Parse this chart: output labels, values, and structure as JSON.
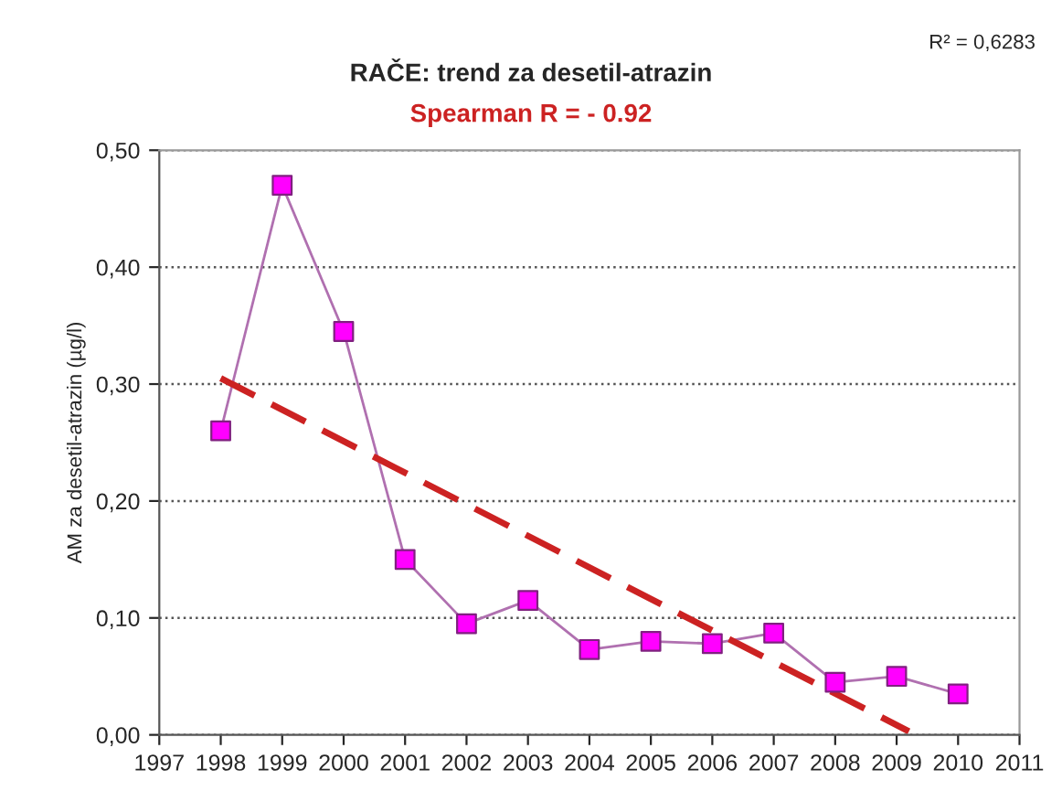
{
  "chart_data": {
    "type": "line",
    "title": "RAČE: trend za desetil-atrazin",
    "subtitle": "Spearman R = - 0.92",
    "ylabel": "AM za desetil-atrazin (µg/l)",
    "annotations": [
      "R² = 0,6283"
    ],
    "x": [
      1998,
      1999,
      2000,
      2001,
      2002,
      2003,
      2004,
      2005,
      2006,
      2007,
      2008,
      2009,
      2010
    ],
    "series": [
      {
        "color": "#ff00ff",
        "marker": "square",
        "line_style": "solid",
        "values": [
          0.26,
          0.47,
          0.345,
          0.15,
          0.095,
          0.115,
          0.073,
          0.08,
          0.078,
          0.087,
          0.045,
          0.05,
          0.035
        ]
      },
      {
        "color": "#cc2222",
        "marker": "none",
        "line_style": "dashed",
        "x": [
          1998,
          2009.2
        ],
        "values": [
          0.305,
          0.003
        ]
      }
    ],
    "xlim": [
      1997,
      2011
    ],
    "xticks": [
      1997,
      1998,
      1999,
      2000,
      2001,
      2002,
      2003,
      2004,
      2005,
      2006,
      2007,
      2008,
      2009,
      2010,
      2011
    ],
    "ylim": [
      0,
      0.5
    ],
    "yticks": [
      {
        "value": 0,
        "label": "0,00"
      },
      {
        "value": 0.1,
        "label": "0,10"
      },
      {
        "value": 0.2,
        "label": "0,20"
      },
      {
        "value": 0.3,
        "label": "0,30"
      },
      {
        "value": 0.4,
        "label": "0,40"
      },
      {
        "value": 0.5,
        "label": "0,50"
      }
    ],
    "grid": "y",
    "legend": false
  }
}
